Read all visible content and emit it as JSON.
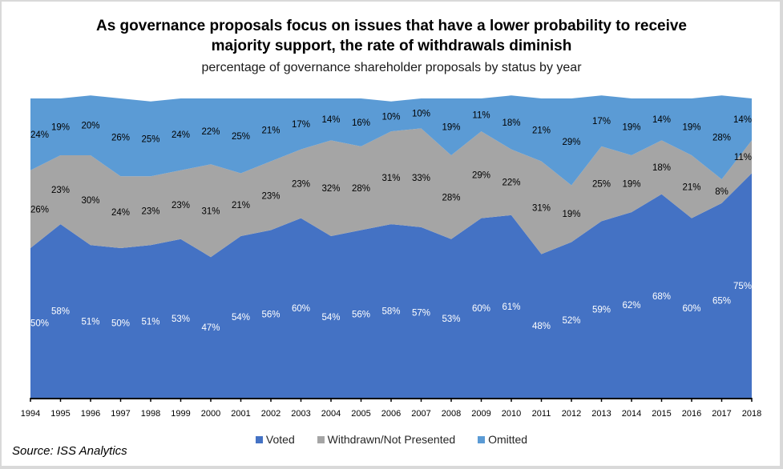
{
  "chart_data": {
    "type": "area",
    "stacked": true,
    "title": "As governance proposals focus on issues that have a lower probability to receive majority support, the rate of withdrawals diminish",
    "subtitle": "percentage of governance shareholder proposals by status by year",
    "xlabel": "",
    "ylabel": "",
    "ylim": [
      0,
      100
    ],
    "grid": false,
    "legend_position": "bottom",
    "source": "Source: ISS Analytics",
    "categories": [
      "1994",
      "1995",
      "1996",
      "1997",
      "1998",
      "1999",
      "2000",
      "2001",
      "2002",
      "2003",
      "2004",
      "2005",
      "2006",
      "2007",
      "2008",
      "2009",
      "2010",
      "2011",
      "2012",
      "2013",
      "2014",
      "2015",
      "2016",
      "2017",
      "2018"
    ],
    "series": [
      {
        "name": "Voted",
        "color": "#4472c4",
        "label_color": "#ffffff",
        "values": [
          50,
          58,
          51,
          50,
          51,
          53,
          47,
          54,
          56,
          60,
          54,
          56,
          58,
          57,
          53,
          60,
          61,
          48,
          52,
          59,
          62,
          68,
          60,
          65,
          75
        ]
      },
      {
        "name": "Withdrawn/Not Presented",
        "color": "#a5a5a5",
        "label_color": "#000000",
        "values": [
          26,
          23,
          30,
          24,
          23,
          23,
          31,
          21,
          23,
          23,
          32,
          28,
          31,
          33,
          28,
          29,
          22,
          31,
          19,
          25,
          19,
          18,
          21,
          8,
          11
        ]
      },
      {
        "name": "Omitted",
        "color": "#5b9bd5",
        "label_color": "#000000",
        "values": [
          24,
          19,
          20,
          26,
          25,
          24,
          22,
          25,
          21,
          17,
          14,
          16,
          10,
          10,
          19,
          11,
          18,
          21,
          29,
          17,
          19,
          14,
          19,
          28,
          14
        ]
      }
    ]
  }
}
